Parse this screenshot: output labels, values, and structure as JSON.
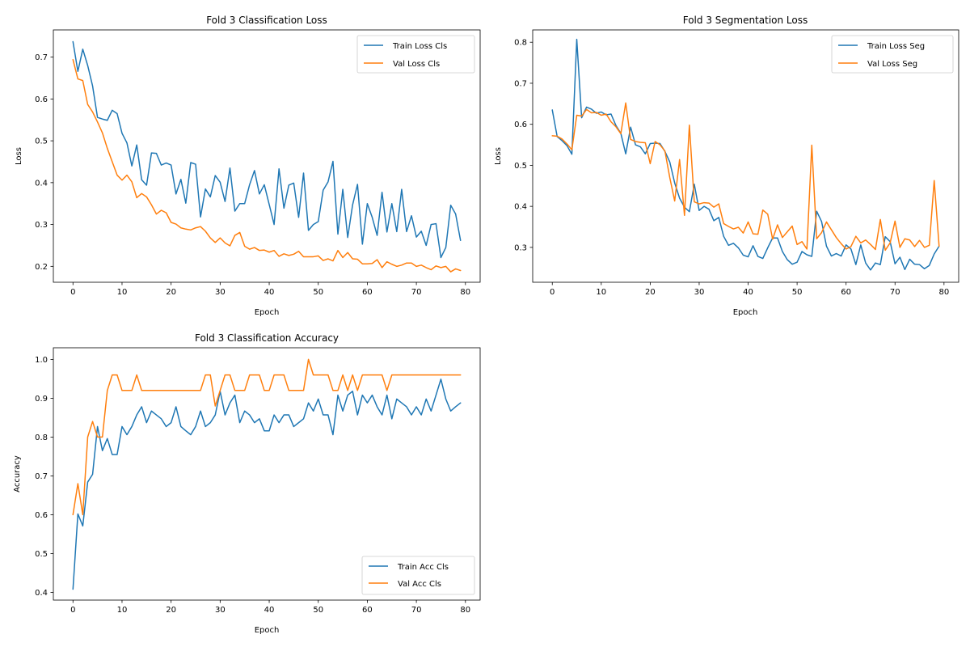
{
  "chart_data": [
    {
      "type": "line",
      "title": "Fold 3 Classification Loss",
      "xlabel": "Epoch",
      "ylabel": "Loss",
      "xlim": [
        -4,
        83
      ],
      "ylim": [
        0.162,
        0.765
      ],
      "xticks": [
        0,
        10,
        20,
        30,
        40,
        50,
        60,
        70,
        80
      ],
      "yticks": [
        0.2,
        0.3,
        0.4,
        0.5,
        0.6,
        0.7
      ],
      "ytick_labels": [
        "0.2",
        "0.3",
        "0.4",
        "0.5",
        "0.6",
        "0.7"
      ],
      "legend_position": "top-right",
      "grid": false,
      "x": [
        0,
        1,
        2,
        3,
        4,
        5,
        6,
        7,
        8,
        9,
        10,
        11,
        12,
        13,
        14,
        15,
        16,
        17,
        18,
        19,
        20,
        21,
        22,
        23,
        24,
        25,
        26,
        27,
        28,
        29,
        30,
        31,
        32,
        33,
        34,
        35,
        36,
        37,
        38,
        39,
        40,
        41,
        42,
        43,
        44,
        45,
        46,
        47,
        48,
        49,
        50,
        51,
        52,
        53,
        54,
        55,
        56,
        57,
        58,
        59,
        60,
        61,
        62,
        63,
        64,
        65,
        66,
        67,
        68,
        69,
        70,
        71,
        72,
        73,
        74,
        75,
        76,
        77,
        78,
        79
      ],
      "series": [
        {
          "name": "Train Loss Cls",
          "color": "#1f77b4",
          "values": [
            0.737,
            0.666,
            0.719,
            0.68,
            0.631,
            0.556,
            0.552,
            0.549,
            0.573,
            0.565,
            0.518,
            0.495,
            0.44,
            0.49,
            0.407,
            0.394,
            0.471,
            0.47,
            0.442,
            0.447,
            0.442,
            0.373,
            0.408,
            0.351,
            0.448,
            0.444,
            0.318,
            0.385,
            0.366,
            0.417,
            0.401,
            0.355,
            0.435,
            0.332,
            0.35,
            0.35,
            0.395,
            0.429,
            0.373,
            0.395,
            0.348,
            0.3,
            0.433,
            0.339,
            0.394,
            0.399,
            0.317,
            0.423,
            0.286,
            0.3,
            0.307,
            0.382,
            0.402,
            0.451,
            0.277,
            0.384,
            0.269,
            0.347,
            0.396,
            0.253,
            0.35,
            0.317,
            0.274,
            0.377,
            0.282,
            0.35,
            0.283,
            0.384,
            0.283,
            0.321,
            0.27,
            0.284,
            0.25,
            0.3,
            0.302,
            0.221,
            0.245,
            0.346,
            0.325,
            0.262
          ]
        },
        {
          "name": "Val Loss Cls",
          "color": "#ff7f0e",
          "values": [
            0.694,
            0.648,
            0.644,
            0.587,
            0.569,
            0.545,
            0.519,
            0.482,
            0.45,
            0.418,
            0.406,
            0.418,
            0.402,
            0.364,
            0.374,
            0.366,
            0.347,
            0.325,
            0.334,
            0.328,
            0.305,
            0.301,
            0.292,
            0.289,
            0.287,
            0.292,
            0.295,
            0.284,
            0.268,
            0.257,
            0.268,
            0.256,
            0.249,
            0.274,
            0.281,
            0.248,
            0.241,
            0.245,
            0.238,
            0.239,
            0.234,
            0.238,
            0.224,
            0.23,
            0.226,
            0.229,
            0.236,
            0.223,
            0.223,
            0.223,
            0.225,
            0.214,
            0.218,
            0.213,
            0.238,
            0.221,
            0.233,
            0.218,
            0.217,
            0.206,
            0.206,
            0.207,
            0.216,
            0.197,
            0.211,
            0.205,
            0.2,
            0.203,
            0.208,
            0.208,
            0.2,
            0.203,
            0.197,
            0.192,
            0.201,
            0.197,
            0.2,
            0.187,
            0.194,
            0.19
          ]
        }
      ]
    },
    {
      "type": "line",
      "title": "Fold 3 Segmentation Loss",
      "xlabel": "Epoch",
      "ylabel": "Loss",
      "xlim": [
        -4,
        83
      ],
      "ylim": [
        0.215,
        0.83
      ],
      "xticks": [
        0,
        10,
        20,
        30,
        40,
        50,
        60,
        70,
        80
      ],
      "yticks": [
        0.3,
        0.4,
        0.5,
        0.6,
        0.7,
        0.8
      ],
      "ytick_labels": [
        "0.3",
        "0.4",
        "0.5",
        "0.6",
        "0.7",
        "0.8"
      ],
      "legend_position": "top-right",
      "grid": false,
      "x": [
        0,
        1,
        2,
        3,
        4,
        5,
        6,
        7,
        8,
        9,
        10,
        11,
        12,
        13,
        14,
        15,
        16,
        17,
        18,
        19,
        20,
        21,
        22,
        23,
        24,
        25,
        26,
        27,
        28,
        29,
        30,
        31,
        32,
        33,
        34,
        35,
        36,
        37,
        38,
        39,
        40,
        41,
        42,
        43,
        44,
        45,
        46,
        47,
        48,
        49,
        50,
        51,
        52,
        53,
        54,
        55,
        56,
        57,
        58,
        59,
        60,
        61,
        62,
        63,
        64,
        65,
        66,
        67,
        68,
        69,
        70,
        71,
        72,
        73,
        74,
        75,
        76,
        77,
        78,
        79
      ],
      "series": [
        {
          "name": "Train Loss Seg",
          "color": "#1f77b4",
          "values": [
            0.635,
            0.57,
            0.56,
            0.548,
            0.527,
            0.807,
            0.616,
            0.642,
            0.637,
            0.627,
            0.63,
            0.623,
            0.625,
            0.597,
            0.578,
            0.528,
            0.593,
            0.55,
            0.545,
            0.528,
            0.553,
            0.554,
            0.553,
            0.534,
            0.508,
            0.457,
            0.42,
            0.398,
            0.387,
            0.454,
            0.39,
            0.4,
            0.393,
            0.365,
            0.373,
            0.327,
            0.305,
            0.31,
            0.299,
            0.281,
            0.277,
            0.304,
            0.278,
            0.273,
            0.299,
            0.323,
            0.323,
            0.29,
            0.27,
            0.259,
            0.264,
            0.29,
            0.282,
            0.278,
            0.388,
            0.363,
            0.303,
            0.279,
            0.285,
            0.279,
            0.306,
            0.296,
            0.258,
            0.306,
            0.262,
            0.245,
            0.262,
            0.258,
            0.326,
            0.314,
            0.26,
            0.276,
            0.246,
            0.271,
            0.259,
            0.258,
            0.248,
            0.256,
            0.284,
            0.303
          ]
        },
        {
          "name": "Val Loss Seg",
          "color": "#ff7f0e",
          "values": [
            0.572,
            0.571,
            0.564,
            0.552,
            0.538,
            0.622,
            0.62,
            0.636,
            0.628,
            0.629,
            0.622,
            0.625,
            0.606,
            0.594,
            0.577,
            0.652,
            0.563,
            0.558,
            0.556,
            0.555,
            0.504,
            0.558,
            0.55,
            0.535,
            0.47,
            0.413,
            0.514,
            0.378,
            0.598,
            0.411,
            0.406,
            0.409,
            0.408,
            0.398,
            0.406,
            0.358,
            0.351,
            0.345,
            0.349,
            0.335,
            0.362,
            0.333,
            0.332,
            0.391,
            0.381,
            0.32,
            0.355,
            0.324,
            0.338,
            0.352,
            0.307,
            0.314,
            0.296,
            0.549,
            0.321,
            0.336,
            0.362,
            0.343,
            0.324,
            0.309,
            0.296,
            0.302,
            0.327,
            0.311,
            0.318,
            0.307,
            0.295,
            0.368,
            0.293,
            0.311,
            0.364,
            0.3,
            0.321,
            0.318,
            0.302,
            0.317,
            0.3,
            0.305,
            0.463,
            0.303
          ]
        }
      ]
    },
    {
      "type": "line",
      "title": "Fold 3 Classification Accuracy",
      "xlabel": "Epoch",
      "ylabel": "Accuracy",
      "xlim": [
        -4,
        83
      ],
      "ylim": [
        0.38,
        1.03
      ],
      "xticks": [
        0,
        10,
        20,
        30,
        40,
        50,
        60,
        70,
        80
      ],
      "yticks": [
        0.4,
        0.5,
        0.6,
        0.7,
        0.8,
        0.9,
        1.0
      ],
      "ytick_labels": [
        "0.4",
        "0.5",
        "0.6",
        "0.7",
        "0.8",
        "0.9",
        "1.0"
      ],
      "legend_position": "lower-right",
      "grid": false,
      "x": [
        0,
        1,
        2,
        3,
        4,
        5,
        6,
        7,
        8,
        9,
        10,
        11,
        12,
        13,
        14,
        15,
        16,
        17,
        18,
        19,
        20,
        21,
        22,
        23,
        24,
        25,
        26,
        27,
        28,
        29,
        30,
        31,
        32,
        33,
        34,
        35,
        36,
        37,
        38,
        39,
        40,
        41,
        42,
        43,
        44,
        45,
        46,
        47,
        48,
        49,
        50,
        51,
        52,
        53,
        54,
        55,
        56,
        57,
        58,
        59,
        60,
        61,
        62,
        63,
        64,
        65,
        66,
        67,
        68,
        69,
        70,
        71,
        72,
        73,
        74,
        75,
        76,
        77,
        78,
        79
      ],
      "series": [
        {
          "name": "Train Acc Cls",
          "color": "#1f77b4",
          "values": [
            0.408,
            0.602,
            0.571,
            0.684,
            0.704,
            0.827,
            0.765,
            0.796,
            0.755,
            0.755,
            0.827,
            0.806,
            0.827,
            0.857,
            0.878,
            0.837,
            0.867,
            0.857,
            0.847,
            0.827,
            0.837,
            0.878,
            0.827,
            0.816,
            0.806,
            0.827,
            0.867,
            0.827,
            0.837,
            0.857,
            0.918,
            0.857,
            0.888,
            0.908,
            0.837,
            0.867,
            0.857,
            0.837,
            0.847,
            0.816,
            0.816,
            0.857,
            0.837,
            0.857,
            0.857,
            0.827,
            0.837,
            0.847,
            0.888,
            0.867,
            0.898,
            0.857,
            0.857,
            0.806,
            0.908,
            0.867,
            0.908,
            0.918,
            0.857,
            0.908,
            0.888,
            0.908,
            0.878,
            0.857,
            0.908,
            0.847,
            0.898,
            0.888,
            0.878,
            0.857,
            0.878,
            0.857,
            0.898,
            0.867,
            0.908,
            0.949,
            0.898,
            0.867,
            0.878,
            0.888
          ]
        },
        {
          "name": "Val Acc Cls",
          "color": "#ff7f0e",
          "values": [
            0.6,
            0.68,
            0.6,
            0.8,
            0.84,
            0.8,
            0.8,
            0.92,
            0.96,
            0.96,
            0.92,
            0.92,
            0.92,
            0.96,
            0.92,
            0.92,
            0.92,
            0.92,
            0.92,
            0.92,
            0.92,
            0.92,
            0.92,
            0.92,
            0.92,
            0.92,
            0.92,
            0.96,
            0.96,
            0.88,
            0.92,
            0.96,
            0.96,
            0.92,
            0.92,
            0.92,
            0.96,
            0.96,
            0.96,
            0.92,
            0.92,
            0.96,
            0.96,
            0.96,
            0.92,
            0.92,
            0.92,
            0.92,
            1.0,
            0.96,
            0.96,
            0.96,
            0.96,
            0.92,
            0.92,
            0.96,
            0.92,
            0.96,
            0.92,
            0.96,
            0.96,
            0.96,
            0.96,
            0.96,
            0.92,
            0.96,
            0.96,
            0.96,
            0.96,
            0.96,
            0.96,
            0.96,
            0.96,
            0.96,
            0.96,
            0.96,
            0.96,
            0.96,
            0.96,
            0.96
          ]
        }
      ]
    }
  ]
}
